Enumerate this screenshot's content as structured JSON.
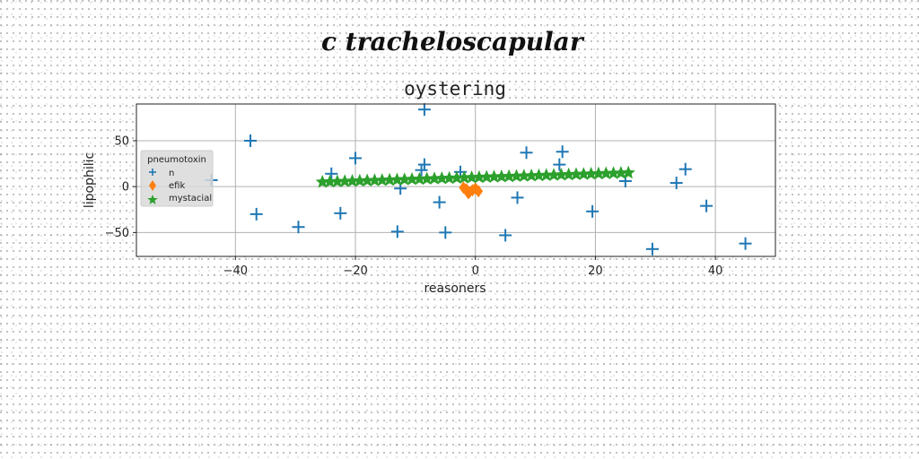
{
  "suptitle": "c tracheloscapular",
  "chart_data": {
    "type": "scatter",
    "title": "oystering",
    "xlabel": "reasoners",
    "ylabel": "lipophilic",
    "xlim": [
      -56.5,
      50
    ],
    "ylim": [
      -76,
      90
    ],
    "xticks": [
      -40,
      -20,
      0,
      20,
      40
    ],
    "xtick_labels": [
      "−40",
      "−20",
      "0",
      "20",
      "40"
    ],
    "yticks": [
      -50,
      0,
      50
    ],
    "ytick_labels": [
      "−50",
      "0",
      "50"
    ],
    "grid": true,
    "legend": {
      "title": "pneumotoxin",
      "placement": "center-left",
      "entries": [
        "n",
        "efik",
        "mystacial"
      ]
    },
    "series": [
      {
        "name": "n",
        "marker": "plus",
        "color": "#1f77b4",
        "x": [
          -8.5,
          -37.5,
          -36.5,
          -29.5,
          -24,
          -22.5,
          -20,
          -12.5,
          -13,
          -9,
          -8.5,
          -6,
          -5,
          -2.5,
          5,
          7,
          8.5,
          14,
          14.5,
          19.5,
          25,
          29.5,
          33.5,
          35,
          38.5,
          45,
          -44
        ],
        "y": [
          84,
          50,
          -30,
          -44,
          14,
          -29,
          31,
          -2,
          -49,
          18,
          24,
          -17,
          -50,
          16,
          -53,
          -12,
          37,
          24,
          38,
          -27,
          6,
          -68,
          4,
          19,
          -21,
          -62,
          7
        ]
      },
      {
        "name": "efik",
        "marker": "diamond",
        "color": "#ff7f0e",
        "x": [
          -1.5,
          -1.0,
          -0.5,
          0.0,
          0.5,
          -2.0,
          -1.2
        ],
        "y": [
          -3,
          -6,
          -4,
          -2,
          -5,
          -1,
          -7
        ]
      },
      {
        "name": "mystacial",
        "marker": "star",
        "color": "#2ca02c",
        "x_start": -25.5,
        "x_end": 25.5,
        "count": 42,
        "y_start": 5,
        "y_end": 15
      }
    ]
  }
}
